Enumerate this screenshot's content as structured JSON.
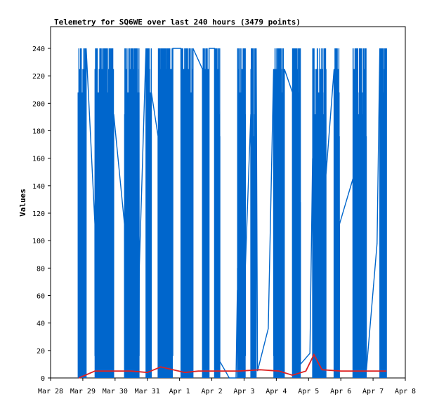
{
  "chart_data": {
    "type": "line",
    "title": "Telemetry for SQ6WE over last 240 hours (3479 points)",
    "xlabel": "",
    "ylabel": "Values",
    "ylim": [
      0,
      255
    ],
    "y_ticks": [
      0,
      20,
      40,
      60,
      80,
      100,
      120,
      140,
      160,
      180,
      200,
      220,
      240
    ],
    "x_range_hours": [
      0,
      264
    ],
    "x_ticks": [
      {
        "label": "Mar 28",
        "hour": 0
      },
      {
        "label": "Mar 29",
        "hour": 24
      },
      {
        "label": "Mar 30",
        "hour": 48
      },
      {
        "label": "Mar 31",
        "hour": 72
      },
      {
        "label": "Apr 1",
        "hour": 96
      },
      {
        "label": "Apr 2",
        "hour": 120
      },
      {
        "label": "Apr 3",
        "hour": 144
      },
      {
        "label": "Apr 4",
        "hour": 168
      },
      {
        "label": "Apr 5",
        "hour": 192
      },
      {
        "label": "Apr 6",
        "hour": 216
      },
      {
        "label": "Apr 7",
        "hour": 240
      },
      {
        "label": "Apr 8",
        "hour": 264
      }
    ],
    "grid": false,
    "legend": "none",
    "series": [
      {
        "color": "#0066cc",
        "style": "dense-oscillation",
        "active_windows_hours": [
          [
            20.5,
            26.5
          ],
          [
            33,
            47
          ],
          [
            55,
            66
          ],
          [
            71,
            75
          ],
          [
            80,
            91
          ],
          [
            97,
            106
          ],
          [
            113,
            118
          ],
          [
            122,
            126
          ],
          [
            139,
            145
          ],
          [
            149,
            153
          ],
          [
            166,
            174
          ],
          [
            180,
            186
          ],
          [
            195,
            205
          ],
          [
            211,
            215
          ],
          [
            225,
            235
          ],
          [
            245,
            250
          ]
        ],
        "bridge_points": [
          {
            "hour": 126,
            "value": 12
          },
          {
            "hour": 133,
            "value": 0
          },
          {
            "hour": 138,
            "value": 0
          },
          {
            "hour": 145,
            "value": 82
          },
          {
            "hour": 154,
            "value": 5
          },
          {
            "hour": 162,
            "value": 36
          },
          {
            "hour": 186,
            "value": 10
          },
          {
            "hour": 193,
            "value": 18
          },
          {
            "hour": 205,
            "value": 148
          },
          {
            "hour": 211,
            "value": 0
          },
          {
            "hour": 235,
            "value": 5
          },
          {
            "hour": 243,
            "value": 98
          }
        ]
      },
      {
        "color": "#dd2222",
        "style": "line",
        "points": [
          {
            "hour": 21,
            "value": 0
          },
          {
            "hour": 33,
            "value": 5
          },
          {
            "hour": 60,
            "value": 5
          },
          {
            "hour": 72,
            "value": 4
          },
          {
            "hour": 82,
            "value": 8
          },
          {
            "hour": 100,
            "value": 4
          },
          {
            "hour": 110,
            "value": 5
          },
          {
            "hour": 140,
            "value": 5
          },
          {
            "hour": 156,
            "value": 6
          },
          {
            "hour": 170,
            "value": 5
          },
          {
            "hour": 180,
            "value": 2
          },
          {
            "hour": 190,
            "value": 5
          },
          {
            "hour": 196,
            "value": 17
          },
          {
            "hour": 202,
            "value": 6
          },
          {
            "hour": 216,
            "value": 5
          },
          {
            "hour": 250,
            "value": 5
          }
        ]
      }
    ]
  }
}
